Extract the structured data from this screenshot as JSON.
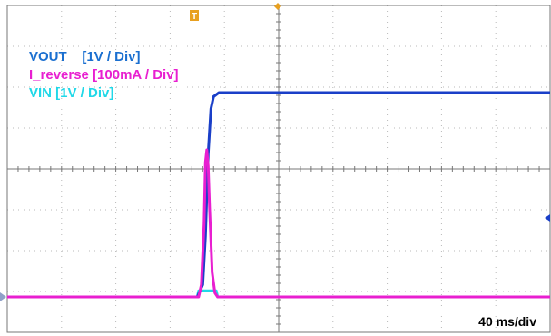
{
  "chart_data": {
    "type": "line",
    "title": "",
    "xlabel": "",
    "ylabel": "",
    "timebase": "40 ms/div",
    "divisions": {
      "x": 10,
      "y": 8
    },
    "xlim": [
      0,
      400
    ],
    "series": [
      {
        "name": "VOUT    [1V / Div]",
        "color": "#1a3fc8",
        "unit": "div",
        "x": [
          0,
          140,
          144,
          146,
          148,
          150,
          152,
          156,
          400
        ],
        "values": [
          0,
          0,
          0.3,
          1.5,
          3.5,
          4.6,
          4.9,
          5.0,
          5.0
        ]
      },
      {
        "name": "I_reverse [100mA / Div]",
        "color": "#e81fd0",
        "unit": "div",
        "x": [
          0,
          141,
          143,
          145,
          146,
          147,
          148,
          149,
          151,
          153,
          155,
          400
        ],
        "values": [
          0,
          0,
          0.3,
          1.8,
          3.3,
          3.6,
          3.2,
          2.2,
          0.6,
          0.1,
          0,
          0
        ]
      },
      {
        "name": "VIN [1V / Div]",
        "color": "#20d8e8",
        "unit": "div",
        "x": [
          0,
          140,
          141,
          154,
          155,
          400
        ],
        "values": [
          0,
          0,
          0.15,
          0.15,
          0,
          0
        ]
      }
    ]
  },
  "markers": {
    "trigger_label": "T"
  }
}
